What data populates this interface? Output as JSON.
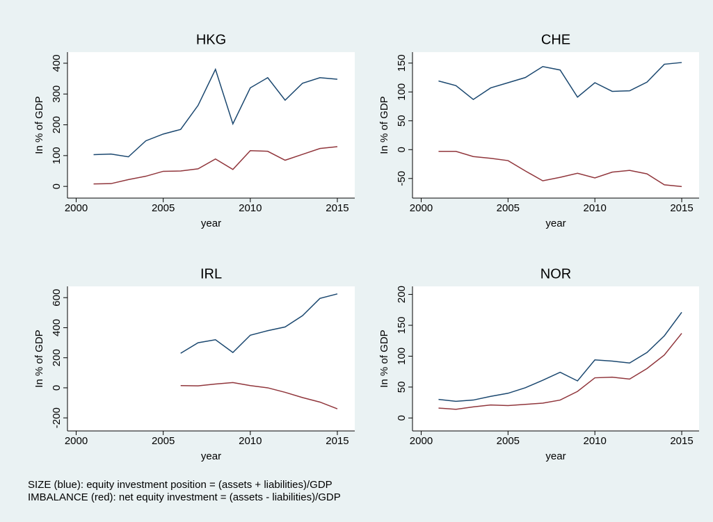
{
  "chart_data": [
    {
      "type": "line",
      "title": "HKG",
      "xlabel": "year",
      "ylabel": "In % of GDP",
      "x": [
        2001,
        2002,
        2003,
        2004,
        2005,
        2006,
        2007,
        2008,
        2009,
        2010,
        2011,
        2012,
        2013,
        2014,
        2015
      ],
      "series": [
        {
          "color": "#1a476f",
          "values": [
            103,
            105,
            96,
            148,
            170,
            185,
            263,
            380,
            203,
            320,
            353,
            280,
            335,
            353,
            348
          ]
        },
        {
          "color": "#90353b",
          "values": [
            8,
            9,
            22,
            33,
            49,
            50,
            57,
            89,
            55,
            116,
            114,
            85,
            104,
            123,
            129
          ]
        }
      ],
      "xlim": [
        1999.5,
        2016
      ],
      "xticks": [
        2000,
        2005,
        2010,
        2015
      ],
      "ylim": [
        -38,
        436
      ],
      "yticks": [
        0,
        100,
        200,
        300,
        400
      ]
    },
    {
      "type": "line",
      "title": "CHE",
      "xlabel": "year",
      "ylabel": "In % of GDP",
      "x": [
        2001,
        2002,
        2003,
        2004,
        2005,
        2006,
        2007,
        2008,
        2009,
        2010,
        2011,
        2012,
        2013,
        2014,
        2015
      ],
      "series": [
        {
          "color": "#1a476f",
          "values": [
            119,
            111,
            87,
            107,
            116,
            125,
            144,
            138,
            91,
            116,
            101,
            102,
            117,
            148,
            151
          ]
        },
        {
          "color": "#90353b",
          "values": [
            -3,
            -3,
            -12,
            -15,
            -19,
            -37,
            -54,
            -48,
            -41,
            -49,
            -39,
            -36,
            -42,
            -61,
            -64
          ]
        }
      ],
      "xlim": [
        1999.5,
        2016
      ],
      "xticks": [
        2000,
        2005,
        2010,
        2015
      ],
      "ylim": [
        -84,
        169
      ],
      "yticks": [
        -50,
        0,
        50,
        100,
        150
      ]
    },
    {
      "type": "line",
      "title": "IRL",
      "xlabel": "year",
      "ylabel": "In % of GDP",
      "x": [
        2001,
        2002,
        2003,
        2004,
        2005,
        2006,
        2007,
        2008,
        2009,
        2010,
        2011,
        2012,
        2013,
        2014,
        2015
      ],
      "series": [
        {
          "color": "#1a476f",
          "values": [
            null,
            null,
            null,
            null,
            null,
            230,
            300,
            320,
            235,
            350,
            380,
            405,
            480,
            595,
            625
          ]
        },
        {
          "color": "#90353b",
          "values": [
            null,
            null,
            null,
            null,
            null,
            15,
            13,
            25,
            35,
            15,
            0,
            -30,
            -65,
            -95,
            -140
          ]
        }
      ],
      "xlim": [
        1999.5,
        2016
      ],
      "xticks": [
        2000,
        2005,
        2010,
        2015
      ],
      "ylim": [
        -287,
        675
      ],
      "yticks": [
        -200,
        0,
        200,
        400,
        600
      ]
    },
    {
      "type": "line",
      "title": "NOR",
      "xlabel": "year",
      "ylabel": "In % of GDP",
      "x": [
        2001,
        2002,
        2003,
        2004,
        2005,
        2006,
        2007,
        2008,
        2009,
        2010,
        2011,
        2012,
        2013,
        2014,
        2015
      ],
      "series": [
        {
          "color": "#1a476f",
          "values": [
            30,
            27,
            29,
            35,
            40,
            49,
            61,
            74,
            60,
            94,
            92,
            89,
            106,
            133,
            171
          ]
        },
        {
          "color": "#90353b",
          "values": [
            16,
            14,
            18,
            21,
            20,
            22,
            24,
            29,
            43,
            65,
            66,
            63,
            80,
            102,
            137
          ]
        }
      ],
      "xlim": [
        1999.5,
        2016
      ],
      "xticks": [
        2000,
        2005,
        2010,
        2015
      ],
      "ylim": [
        -21,
        213
      ],
      "yticks": [
        0,
        50,
        100,
        150,
        200
      ]
    }
  ],
  "notes": [
    "SIZE (blue): equity investment position = (assets + liabilities)/GDP",
    "IMBALANCE (red): net equity investment = (assets - liabilities)/GDP"
  ]
}
